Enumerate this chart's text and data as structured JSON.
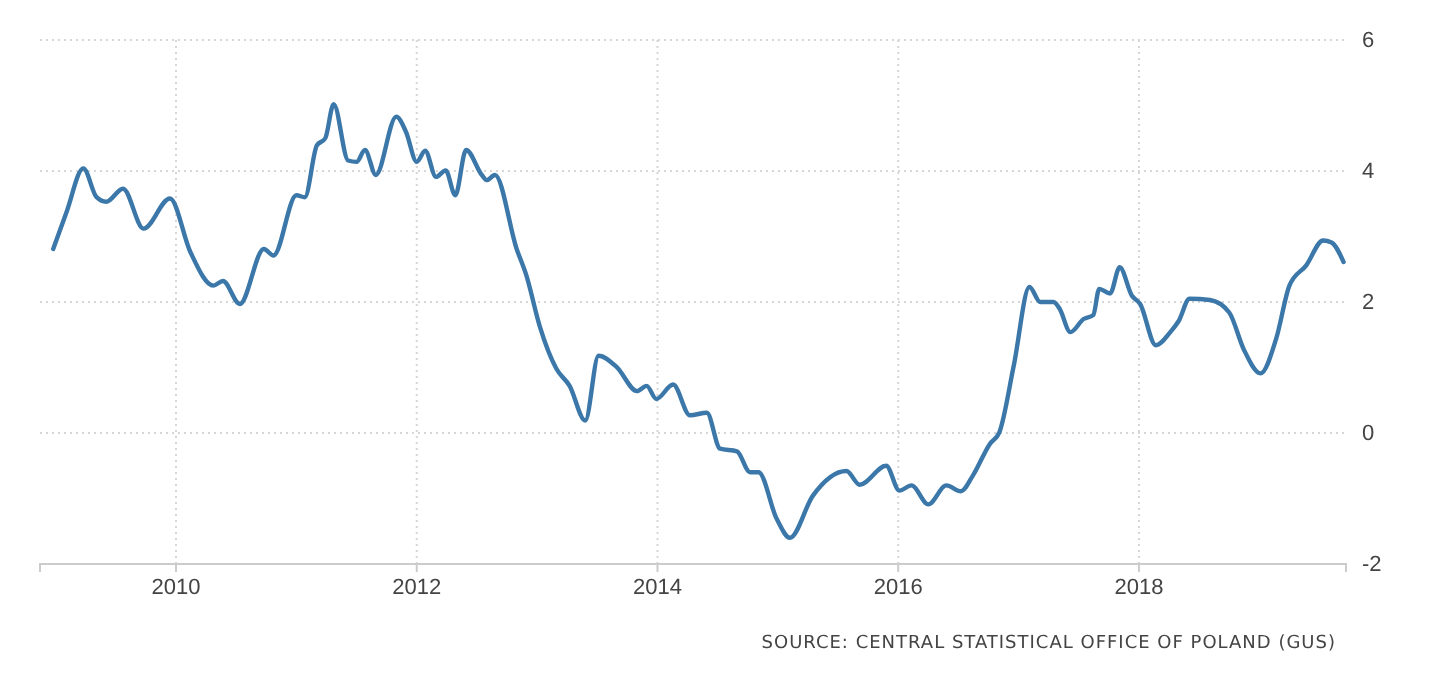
{
  "chart_data": {
    "type": "line",
    "xlim": [
      2008.87,
      2019.72
    ],
    "xticks": [
      2010,
      2012,
      2014,
      2016,
      2018
    ],
    "ylim": [
      -2,
      6
    ],
    "yticks": [
      -2,
      0,
      2,
      4,
      6
    ],
    "grid": true,
    "line_style": "solid",
    "marker": "none",
    "annotations": [
      "SOURCE: CENTRAL STATISTICAL OFFICE OF POLAND (GUS)"
    ],
    "series": [
      {
        "color": "#3b78a9",
        "x": [
          2008.98,
          2009.09,
          2009.23,
          2009.34,
          2009.42,
          2009.56,
          2009.73,
          2009.95,
          2010.12,
          2010.31,
          2010.39,
          2010.53,
          2010.73,
          2010.81,
          2011.0,
          2011.07,
          2011.17,
          2011.24,
          2011.31,
          2011.43,
          2011.5,
          2011.57,
          2011.66,
          2011.83,
          2011.91,
          2012.0,
          2012.07,
          2012.16,
          2012.24,
          2012.32,
          2012.41,
          2012.54,
          2012.58,
          2012.65,
          2012.83,
          2012.91,
          2013.02,
          2013.16,
          2013.27,
          2013.4,
          2013.51,
          2013.66,
          2013.83,
          2013.91,
          2013.99,
          2014.13,
          2014.27,
          2014.41,
          2014.52,
          2014.66,
          2014.77,
          2014.84,
          2014.99,
          2015.1,
          2015.29,
          2015.57,
          2015.68,
          2015.9,
          2016.01,
          2016.11,
          2016.25,
          2016.4,
          2016.52,
          2016.62,
          2016.76,
          2016.84,
          2016.96,
          2017.09,
          2017.18,
          2017.29,
          2017.34,
          2017.43,
          2017.54,
          2017.62,
          2017.67,
          2017.76,
          2017.84,
          2017.94,
          2018.01,
          2018.14,
          2018.26,
          2018.33,
          2018.42,
          2018.59,
          2018.75,
          2018.87,
          2019.01,
          2019.14,
          2019.25,
          2019.39,
          2019.53,
          2019.6,
          2019.7
        ],
        "values": [
          2.81,
          3.37,
          4.04,
          3.6,
          3.53,
          3.73,
          3.12,
          3.58,
          2.76,
          2.25,
          2.32,
          1.97,
          2.81,
          2.71,
          3.63,
          3.6,
          4.39,
          4.5,
          5.02,
          4.16,
          4.14,
          4.32,
          3.94,
          4.83,
          4.6,
          4.14,
          4.31,
          3.91,
          4.01,
          3.63,
          4.32,
          3.94,
          3.86,
          3.94,
          2.81,
          2.41,
          1.64,
          0.98,
          0.72,
          0.19,
          1.18,
          1.01,
          0.64,
          0.72,
          0.52,
          0.74,
          0.27,
          0.31,
          -0.24,
          -0.28,
          -0.6,
          -0.6,
          -1.31,
          -1.6,
          -0.96,
          -0.58,
          -0.79,
          -0.5,
          -0.88,
          -0.8,
          -1.09,
          -0.8,
          -0.89,
          -0.65,
          -0.17,
          0.01,
          1.03,
          2.23,
          2.0,
          2.0,
          1.9,
          1.54,
          1.74,
          1.8,
          2.2,
          2.13,
          2.53,
          2.1,
          1.97,
          1.34,
          1.54,
          1.71,
          2.05,
          2.03,
          1.84,
          1.28,
          0.91,
          1.44,
          2.25,
          2.56,
          2.94,
          2.91,
          2.61
        ]
      }
    ]
  }
}
